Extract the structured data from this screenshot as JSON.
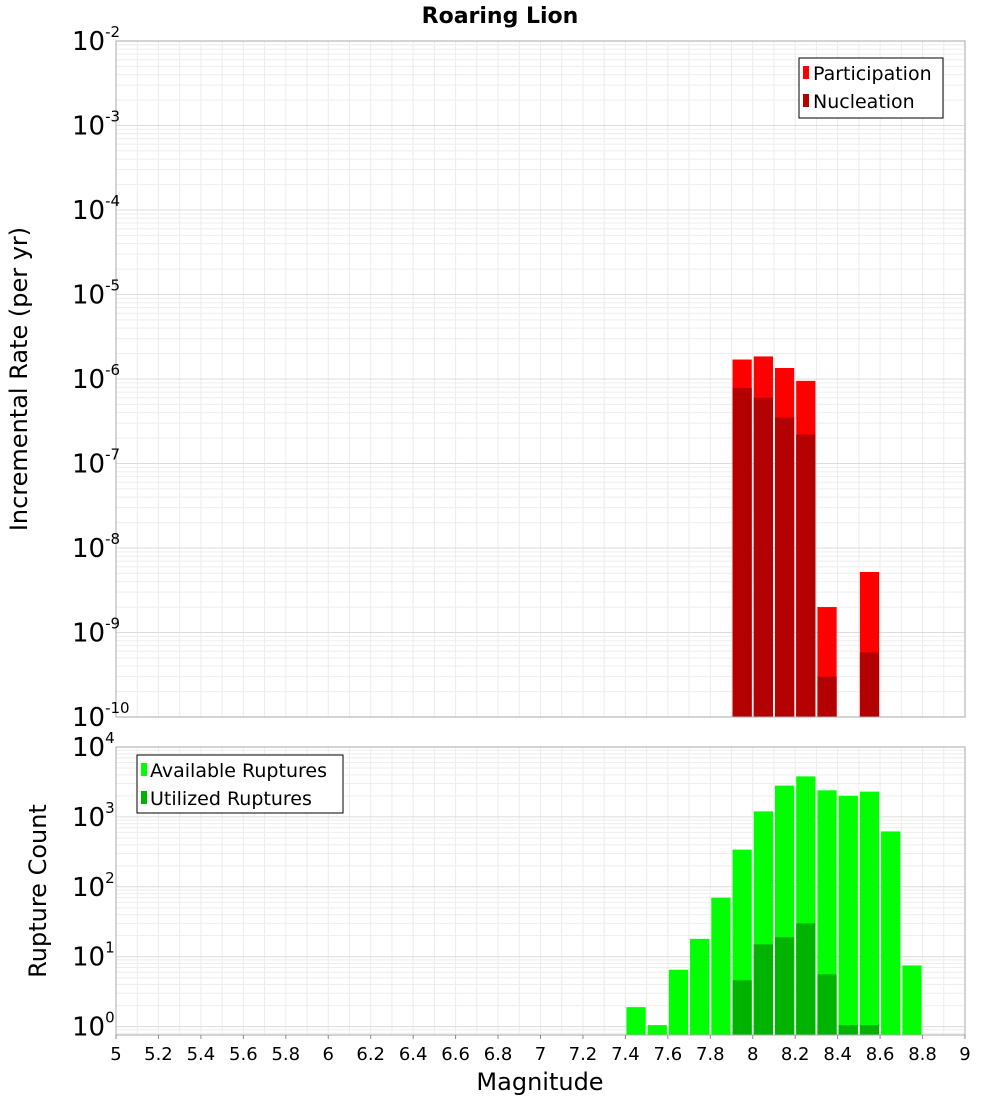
{
  "chart_data": [
    {
      "type": "bar",
      "id": "top",
      "title": "Roaring Lion",
      "xlabel": "",
      "ylabel": "Incremental Rate (per yr)",
      "xlim": [
        5,
        9
      ],
      "ylim_exp": [
        -10,
        -2
      ],
      "yscale": "log",
      "y_ticks": [
        {
          "base": "10",
          "exp": "-2"
        },
        {
          "base": "10",
          "exp": "-3"
        },
        {
          "base": "10",
          "exp": "-4"
        },
        {
          "base": "10",
          "exp": "-5"
        },
        {
          "base": "10",
          "exp": "-6"
        },
        {
          "base": "10",
          "exp": "-7"
        },
        {
          "base": "10",
          "exp": "-8"
        },
        {
          "base": "10",
          "exp": "-9"
        },
        {
          "base": "10",
          "exp": "-10"
        }
      ],
      "bar_width": 0.1,
      "legend": {
        "position": "top-right",
        "entries": [
          {
            "label": "Participation",
            "color": "#ff0000"
          },
          {
            "label": "Nucleation",
            "color": "#b30000"
          }
        ]
      },
      "series": [
        {
          "name": "Participation",
          "color": "#ff0000",
          "x": [
            7.95,
            8.05,
            8.15,
            8.25,
            8.35,
            8.55
          ],
          "values": [
            1.7e-06,
            1.85e-06,
            1.35e-06,
            9.5e-07,
            2e-09,
            5.2e-09
          ]
        },
        {
          "name": "Nucleation",
          "color": "#b30000",
          "x": [
            7.95,
            8.05,
            8.15,
            8.25,
            8.35,
            8.55
          ],
          "values": [
            7.8e-07,
            6e-07,
            3.5e-07,
            2.2e-07,
            3e-10,
            5.8e-10
          ]
        }
      ]
    },
    {
      "type": "bar",
      "id": "bottom",
      "title": "",
      "xlabel": "Magnitude",
      "ylabel": "Rupture Count",
      "xlim": [
        5,
        9
      ],
      "ylim_exp": [
        -0.12,
        4
      ],
      "yscale": "log",
      "x_ticks": [
        "5",
        "5.2",
        "5.4",
        "5.6",
        "5.8",
        "6",
        "6.2",
        "6.4",
        "6.6",
        "6.8",
        "7",
        "7.2",
        "7.4",
        "7.6",
        "7.8",
        "8",
        "8.2",
        "8.4",
        "8.6",
        "8.8",
        "9"
      ],
      "y_ticks": [
        {
          "base": "10",
          "exp": "4"
        },
        {
          "base": "10",
          "exp": "3"
        },
        {
          "base": "10",
          "exp": "2"
        },
        {
          "base": "10",
          "exp": "1"
        },
        {
          "base": "10",
          "exp": "0"
        }
      ],
      "bar_width": 0.1,
      "legend": {
        "position": "top-left",
        "entries": [
          {
            "label": "Available Ruptures",
            "color": "#00ff00"
          },
          {
            "label": "Utilized Ruptures",
            "color": "#00b300"
          }
        ]
      },
      "series": [
        {
          "name": "Available Ruptures",
          "color": "#00ff00",
          "x": [
            7.45,
            7.55,
            7.65,
            7.75,
            7.85,
            7.95,
            8.05,
            8.15,
            8.25,
            8.35,
            8.45,
            8.55,
            8.65,
            8.75
          ],
          "values": [
            1.9,
            1.05,
            6.5,
            18,
            70,
            340,
            1200,
            2800,
            3800,
            2400,
            2000,
            2300,
            620,
            7.5
          ]
        },
        {
          "name": "Utilized Ruptures",
          "color": "#00b300",
          "x": [
            7.95,
            8.05,
            8.15,
            8.25,
            8.35,
            8.45,
            8.55
          ],
          "values": [
            4.6,
            15,
            19,
            30,
            5.6,
            1.05,
            1.05
          ]
        }
      ]
    }
  ]
}
